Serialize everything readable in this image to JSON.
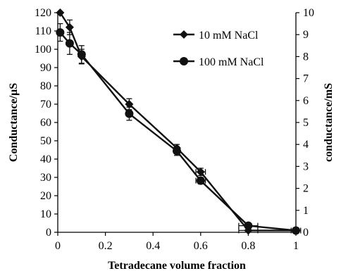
{
  "chart_data": {
    "type": "line",
    "xlabel": "Tetradecane volume fraction",
    "ylabel": "Conductance/μS",
    "y2label": "conductance/mS",
    "xlim": [
      0,
      1
    ],
    "ylim": [
      0,
      120
    ],
    "y2lim": [
      0,
      10
    ],
    "x_ticks": [
      "0",
      "0.2",
      "0.4",
      "0.6",
      "0.8",
      "1"
    ],
    "y_ticks": [
      "0",
      "10",
      "20",
      "30",
      "40",
      "50",
      "60",
      "70",
      "80",
      "90",
      "100",
      "110",
      "120"
    ],
    "y2_ticks": [
      "0",
      "1",
      "2",
      "3",
      "4",
      "5",
      "6",
      "7",
      "8",
      "9",
      "10"
    ],
    "legend_position": "top-right",
    "series": [
      {
        "name": "10 mM NaCl",
        "axis": "left",
        "marker": "diamond",
        "x": [
          0.01,
          0.05,
          0.1,
          0.3,
          0.5,
          0.6,
          0.8,
          1.0
        ],
        "y": [
          120,
          112,
          96,
          70,
          46,
          33,
          1,
          1
        ],
        "yerr": [
          0,
          4,
          4,
          3,
          2,
          2,
          0,
          0
        ],
        "xerr": [
          0,
          0,
          0,
          0,
          0,
          0.02,
          0.04,
          0
        ]
      },
      {
        "name": "100 mM NaCl",
        "axis": "right",
        "marker": "circle",
        "x": [
          0.01,
          0.05,
          0.1,
          0.3,
          0.5,
          0.6,
          0.8,
          1.0
        ],
        "y": [
          9.1,
          8.6,
          8.1,
          5.4,
          3.7,
          2.35,
          0.3,
          0.08
        ],
        "yerr": [
          0.4,
          0.5,
          0.4,
          0.3,
          0.2,
          0.15,
          0,
          0
        ],
        "xerr": [
          0,
          0,
          0,
          0,
          0,
          0.02,
          0.04,
          0.02
        ]
      }
    ]
  }
}
